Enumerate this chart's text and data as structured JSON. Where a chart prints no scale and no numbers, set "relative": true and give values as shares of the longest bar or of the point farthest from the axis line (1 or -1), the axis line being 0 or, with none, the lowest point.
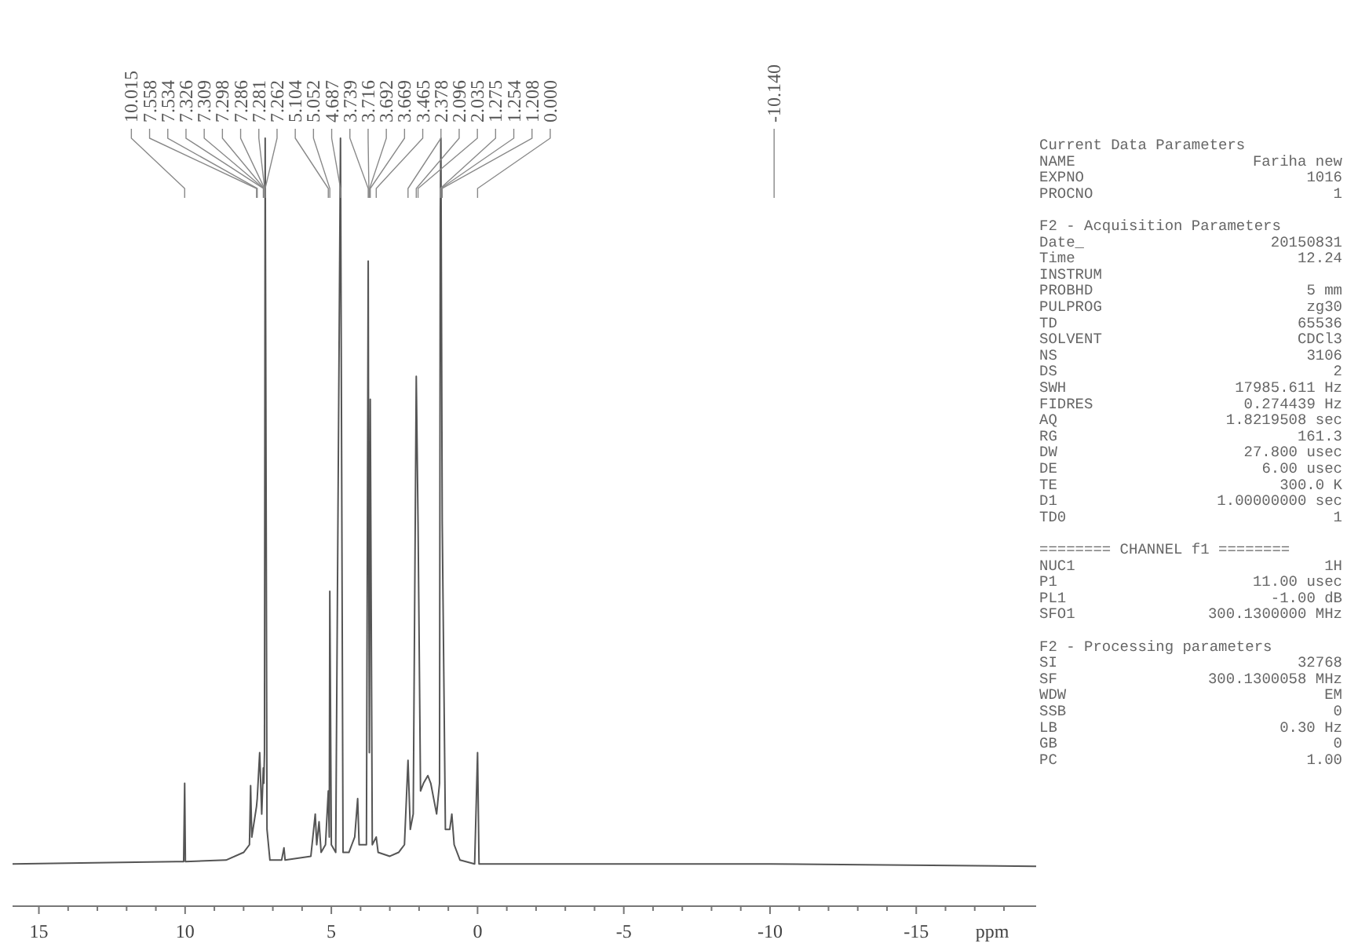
{
  "chart_data": [
    {
      "type": "line",
      "relative": true,
      "xlabel": "ppm",
      "xlim": [
        15.9,
        -19.1
      ],
      "xticks": [
        15,
        10,
        5,
        0,
        -5,
        -10,
        -15,
        {
          "value": 14,
          "label": null
        },
        {
          "value": 13,
          "label": null
        },
        {
          "value": 12,
          "label": null
        },
        {
          "value": 11,
          "label": null
        },
        {
          "value": 9,
          "label": null
        },
        {
          "value": 8,
          "label": null
        },
        {
          "value": 7,
          "label": null
        },
        {
          "value": 6,
          "label": null
        },
        {
          "value": 4,
          "label": null
        },
        {
          "value": 3,
          "label": null
        },
        {
          "value": 2,
          "label": null
        },
        {
          "value": 1,
          "label": null
        },
        {
          "value": -1,
          "label": null
        },
        {
          "value": -2,
          "label": null
        },
        {
          "value": -3,
          "label": null
        },
        {
          "value": -4,
          "label": null
        },
        {
          "value": -6,
          "label": null
        },
        {
          "value": -7,
          "label": null
        },
        {
          "value": -8,
          "label": null
        },
        {
          "value": -9,
          "label": null
        },
        {
          "value": -11,
          "label": null
        },
        {
          "value": -12,
          "label": null
        },
        {
          "value": -13,
          "label": null
        },
        {
          "value": -14,
          "label": null
        },
        {
          "value": -16,
          "label": null
        },
        {
          "value": -17,
          "label": null
        },
        {
          "value": -18,
          "label": null
        }
      ],
      "series": [
        {
          "color": "#555555",
          "x": [
            15.9,
            10.3,
            10.05,
            10.015,
            9.99,
            8.6,
            8.0,
            7.8,
            7.76,
            7.72,
            7.558,
            7.534,
            7.45,
            7.38,
            7.326,
            7.309,
            7.286,
            7.262,
            7.2,
            7.1,
            6.7,
            6.62,
            6.58,
            5.7,
            5.55,
            5.5,
            5.42,
            5.35,
            5.2,
            5.104,
            5.07,
            5.052,
            5.0,
            4.85,
            4.687,
            4.6,
            4.4,
            4.3,
            4.2,
            4.1,
            4.05,
            3.8,
            3.739,
            3.716,
            3.7,
            3.692,
            3.669,
            3.6,
            3.465,
            3.4,
            3.0,
            2.7,
            2.5,
            2.378,
            2.3,
            2.2,
            2.096,
            2.035,
            1.95,
            1.85,
            1.7,
            1.6,
            1.5,
            1.4,
            1.3,
            1.275,
            1.254,
            1.208,
            1.1,
            0.95,
            0.88,
            0.8,
            0.6,
            0.1,
            0.0,
            -0.05,
            -10,
            -19.1
          ],
          "values": [
            0.055,
            0.058,
            0.058,
            0.16,
            0.058,
            0.06,
            0.07,
            0.08,
            0.157,
            0.09,
            0.13,
            0.14,
            0.2,
            0.12,
            0.18,
            0.16,
            0.2,
            1.0,
            0.1,
            0.06,
            0.06,
            0.076,
            0.06,
            0.065,
            0.12,
            0.08,
            0.11,
            0.07,
            0.08,
            0.15,
            0.09,
            0.41,
            0.08,
            0.07,
            1.0,
            0.07,
            0.07,
            0.08,
            0.09,
            0.14,
            0.08,
            0.08,
            0.84,
            0.4,
            0.2,
            0.3,
            0.66,
            0.08,
            0.09,
            0.07,
            0.065,
            0.07,
            0.08,
            0.19,
            0.1,
            0.12,
            0.69,
            0.5,
            0.15,
            0.16,
            0.17,
            0.16,
            0.14,
            0.12,
            0.16,
            0.9,
            1.0,
            0.5,
            0.1,
            0.1,
            0.12,
            0.08,
            0.06,
            0.055,
            0.2,
            0.055,
            0.055,
            0.052
          ]
        }
      ],
      "annotations": [
        {
          "text": "10.015",
          "x": 10.015
        },
        {
          "text": "7.558",
          "x": 7.558
        },
        {
          "text": "7.534",
          "x": 7.534
        },
        {
          "text": "7.326",
          "x": 7.326
        },
        {
          "text": "7.309",
          "x": 7.309
        },
        {
          "text": "7.298",
          "x": 7.298
        },
        {
          "text": "7.286",
          "x": 7.286
        },
        {
          "text": "7.281",
          "x": 7.281
        },
        {
          "text": "7.262",
          "x": 7.262
        },
        {
          "text": "5.104",
          "x": 5.104
        },
        {
          "text": "5.052",
          "x": 5.052
        },
        {
          "text": "4.687",
          "x": 4.687
        },
        {
          "text": "3.739",
          "x": 3.739
        },
        {
          "text": "3.716",
          "x": 3.716
        },
        {
          "text": "3.692",
          "x": 3.692
        },
        {
          "text": "3.669",
          "x": 3.669
        },
        {
          "text": "3.465",
          "x": 3.465
        },
        {
          "text": "2.378",
          "x": 2.378
        },
        {
          "text": "2.096",
          "x": 2.096
        },
        {
          "text": "2.035",
          "x": 2.035
        },
        {
          "text": "1.275",
          "x": 1.275
        },
        {
          "text": "1.254",
          "x": 1.254
        },
        {
          "text": "1.208",
          "x": 1.208
        },
        {
          "text": "0.000",
          "x": 0.0
        },
        {
          "text": "-10.140",
          "x": -10.14
        }
      ]
    },
    {
      "type": "other",
      "categories": [
        "Current Data Parameters",
        "NAME",
        "EXPNO",
        "PROCNO",
        null,
        "F2 - Acquisition Parameters",
        "Date_",
        "Time",
        "INSTRUM",
        "PROBHD",
        "PULPROG",
        "TD",
        "SOLVENT",
        "NS",
        "DS",
        "SWH",
        "FIDRES",
        "AQ",
        "RG",
        "DW",
        "DE",
        "TE",
        "D1",
        "TD0",
        null,
        "======== CHANNEL f1 ========",
        "NUC1",
        "P1",
        "PL1",
        "SFO1",
        null,
        "F2 - Processing parameters",
        "SI",
        "SF",
        "WDW",
        "SSB",
        "LB",
        "GB",
        "PC"
      ],
      "value_labels": [
        null,
        "Fariha new",
        "1016",
        "1",
        null,
        null,
        "20150831",
        "12.24",
        null,
        "5 mm",
        "zg30",
        "65536",
        "CDCl3",
        "3106",
        "2",
        "17985.611 Hz",
        "0.274439 Hz",
        "1.8219508 sec",
        "161.3",
        "27.800 usec",
        "6.00 usec",
        "300.0 K",
        "1.00000000 sec",
        "1",
        null,
        null,
        "1H",
        "11.00 usec",
        "-1.00 dB",
        "300.1300000 MHz",
        null,
        null,
        "32768",
        "300.1300058 MHz",
        "EM",
        "0",
        "0.30 Hz",
        "0",
        "1.00"
      ]
    }
  ]
}
